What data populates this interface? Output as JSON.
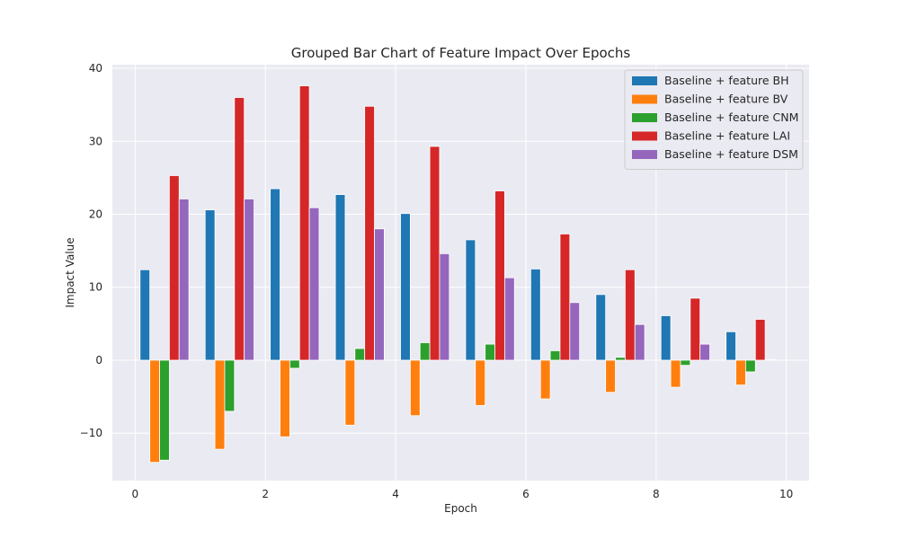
{
  "chart_data": {
    "type": "bar",
    "title": "Grouped Bar Chart of Feature Impact Over Epochs",
    "xlabel": "Epoch",
    "ylabel": "Impact Value",
    "xlim": [
      -0.35,
      10.35
    ],
    "ylim": [
      -16.5,
      40.5
    ],
    "xticks": [
      0,
      2,
      4,
      6,
      8,
      10
    ],
    "xtick_labels": [
      "0",
      "2",
      "4",
      "6",
      "8",
      "10"
    ],
    "yticks": [
      -10,
      0,
      10,
      20,
      30,
      40
    ],
    "ytick_labels": [
      "−10",
      "0",
      "10",
      "20",
      "30",
      "40"
    ],
    "grid": true,
    "legend_position": "top-right",
    "bar_width": 0.15,
    "x": [
      0.15,
      1.15,
      2.15,
      3.15,
      4.15,
      5.15,
      6.15,
      7.15,
      8.15,
      9.15
    ],
    "series": [
      {
        "name": "Baseline + feature BH",
        "color": "#1f77b4",
        "offset": 0.0,
        "values": [
          12.4,
          20.6,
          23.5,
          22.7,
          20.1,
          16.5,
          12.5,
          9.0,
          6.1,
          3.9
        ]
      },
      {
        "name": "Baseline + feature BV",
        "color": "#ff7f0e",
        "offset": 0.15,
        "values": [
          -14.0,
          -12.2,
          -10.5,
          -8.9,
          -7.6,
          -6.2,
          -5.3,
          -4.4,
          -3.7,
          -3.4
        ]
      },
      {
        "name": "Baseline + feature CNM",
        "color": "#2ca02c",
        "offset": 0.3,
        "values": [
          -13.7,
          -7.0,
          -1.1,
          1.6,
          2.4,
          2.2,
          1.3,
          0.4,
          -0.7,
          -1.6
        ]
      },
      {
        "name": "Baseline + feature LAI",
        "color": "#d62728",
        "offset": 0.45,
        "values": [
          25.3,
          36.0,
          37.6,
          34.8,
          29.3,
          23.2,
          17.3,
          12.4,
          8.5,
          5.6
        ]
      },
      {
        "name": "Baseline + feature DSM",
        "color": "#9467bd",
        "offset": 0.6,
        "values": [
          22.1,
          22.1,
          20.9,
          18.0,
          14.6,
          11.3,
          7.9,
          4.9,
          2.2,
          0.1
        ]
      }
    ]
  }
}
